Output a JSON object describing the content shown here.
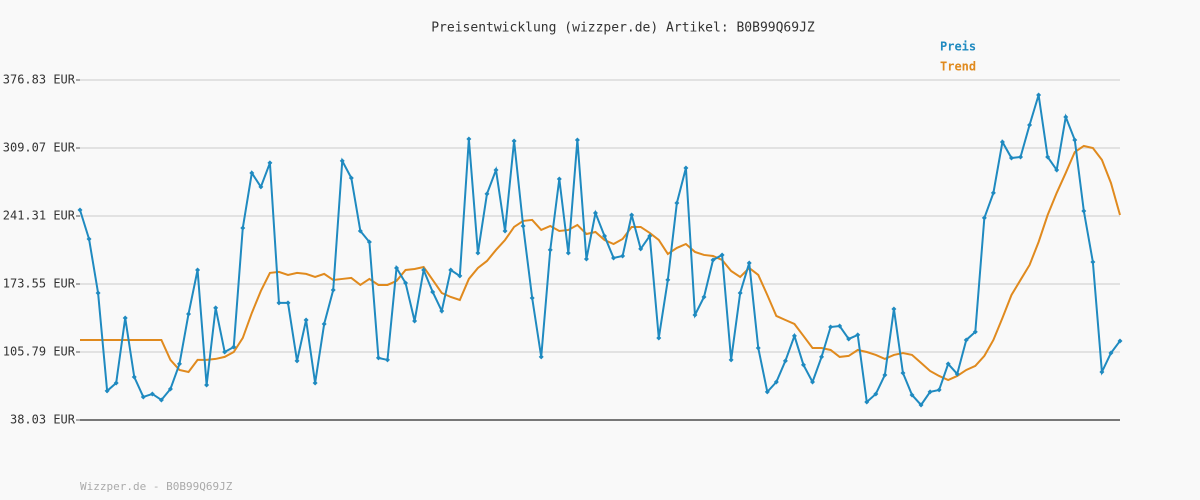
{
  "chart_data": {
    "type": "line",
    "title": "Preisentwicklung (wizzper.de) Artikel: B0B99Q69JZ",
    "footer": "Wizzper.de - B0B99Q69JZ",
    "categories": [
      null,
      null,
      null,
      null,
      null,
      null,
      null,
      null,
      null,
      null,
      null,
      null,
      null,
      null,
      null,
      null,
      null,
      null,
      null,
      null,
      null,
      null,
      null,
      null,
      null,
      null,
      null,
      null,
      null,
      null,
      null,
      null,
      null,
      null,
      null,
      null,
      null,
      null,
      null,
      null,
      null,
      null,
      null,
      null,
      null,
      null,
      null,
      null,
      null,
      null,
      null,
      null,
      null,
      null,
      null,
      null,
      null,
      null,
      null,
      null,
      null,
      null,
      null,
      null,
      null,
      null,
      null,
      null,
      null,
      null,
      null,
      null,
      null,
      null,
      null,
      null,
      null,
      null,
      null,
      null,
      null,
      null,
      null,
      null,
      null,
      null,
      null,
      null,
      null,
      null,
      null,
      null,
      null,
      null,
      null,
      null,
      null,
      null,
      null,
      null,
      null,
      null,
      null,
      null,
      null,
      null,
      null,
      null,
      null,
      null,
      null,
      null,
      null,
      null,
      null,
      null
    ],
    "series": [
      {
        "name": "Preis",
        "color": "#1f8ac0",
        "markers": true,
        "values": [
          247.3,
          218.4,
          164.6,
          67.0,
          74.9,
          139.7,
          80.9,
          61.0,
          64.0,
          58.0,
          68.9,
          93.9,
          143.7,
          187.5,
          72.9,
          149.7,
          105.8,
          110.8,
          229.4,
          284.2,
          270.3,
          294.2,
          154.7,
          154.7,
          96.9,
          137.7,
          74.9,
          133.7,
          167.6,
          296.2,
          279.2,
          226.4,
          215.4,
          99.9,
          97.9,
          189.5,
          174.6,
          136.7,
          187.5,
          165.6,
          146.7,
          187.5,
          181.6,
          318.1,
          204.5,
          263.3,
          287.2,
          226.4,
          316.1,
          231.4,
          159.6,
          100.9,
          207.5,
          278.2,
          204.5,
          317.1,
          198.5,
          244.3,
          221.4,
          199.5,
          201.5,
          242.3,
          208.5,
          221.4,
          119.8,
          177.6,
          254.3,
          289.2,
          142.7,
          160.6,
          197.5,
          202.5,
          97.9,
          164.6,
          194.5,
          109.8,
          66.0,
          75.9,
          96.9,
          121.8,
          92.9,
          75.9,
          100.9,
          130.7,
          131.7,
          118.8,
          122.8,
          56.0,
          64.0,
          82.9,
          148.7,
          84.9,
          63.0,
          53.0,
          66.0,
          68.0,
          93.9,
          83.9,
          117.8,
          125.8,
          239.4,
          264.3,
          315.1,
          299.1,
          300.1,
          332.0,
          361.9,
          300.1,
          287.2,
          340.0,
          317.1,
          246.3,
          195.5,
          85.9,
          104.8,
          116.8
        ]
      },
      {
        "name": "Trend",
        "color": "#e08a1e",
        "markers": false,
        "values": [
          117.8,
          117.8,
          117.8,
          117.8,
          117.8,
          117.8,
          117.8,
          117.8,
          117.8,
          117.8,
          97.9,
          87.9,
          85.9,
          97.9,
          97.9,
          98.9,
          100.9,
          105.8,
          119.8,
          144.7,
          166.6,
          184.6,
          185.6,
          182.6,
          184.6,
          183.6,
          180.6,
          183.6,
          177.6,
          178.6,
          179.6,
          172.6,
          178.6,
          172.6,
          172.6,
          176.6,
          187.5,
          188.5,
          190.5,
          177.6,
          164.6,
          160.6,
          157.6,
          178.6,
          189.5,
          196.5,
          207.5,
          217.4,
          230.4,
          236.4,
          237.4,
          227.4,
          231.4,
          226.4,
          227.4,
          232.4,
          223.4,
          225.4,
          217.4,
          213.4,
          218.4,
          230.4,
          230.4,
          224.4,
          217.4,
          203.5,
          209.5,
          213.4,
          205.5,
          202.5,
          201.5,
          197.5,
          186.5,
          180.6,
          189.5,
          182.6,
          162.6,
          141.7,
          137.7,
          133.7,
          121.8,
          109.8,
          109.8,
          107.8,
          100.9,
          101.9,
          107.8,
          105.8,
          102.9,
          98.9,
          102.9,
          104.8,
          102.9,
          94.9,
          86.9,
          81.9,
          77.9,
          81.9,
          87.9,
          91.9,
          101.9,
          117.8,
          139.7,
          162.6,
          177.6,
          192.5,
          215.4,
          242.3,
          264.3,
          284.2,
          305.1,
          311.1,
          309.1,
          297.2,
          274.2,
          242.3
        ]
      }
    ],
    "ylim": [
      38.03,
      376.83
    ],
    "yticks": [
      {
        "value": 38.03,
        "label": "38.03 EUR"
      },
      {
        "value": 105.79,
        "label": "105.79 EUR"
      },
      {
        "value": 173.55,
        "label": "173.55 EUR"
      },
      {
        "value": 241.31,
        "label": "241.31 EUR"
      },
      {
        "value": 309.07,
        "label": "309.07 EUR"
      },
      {
        "value": 376.83,
        "label": "376.83 EUR"
      }
    ],
    "grid": true,
    "legend": "top-right"
  }
}
